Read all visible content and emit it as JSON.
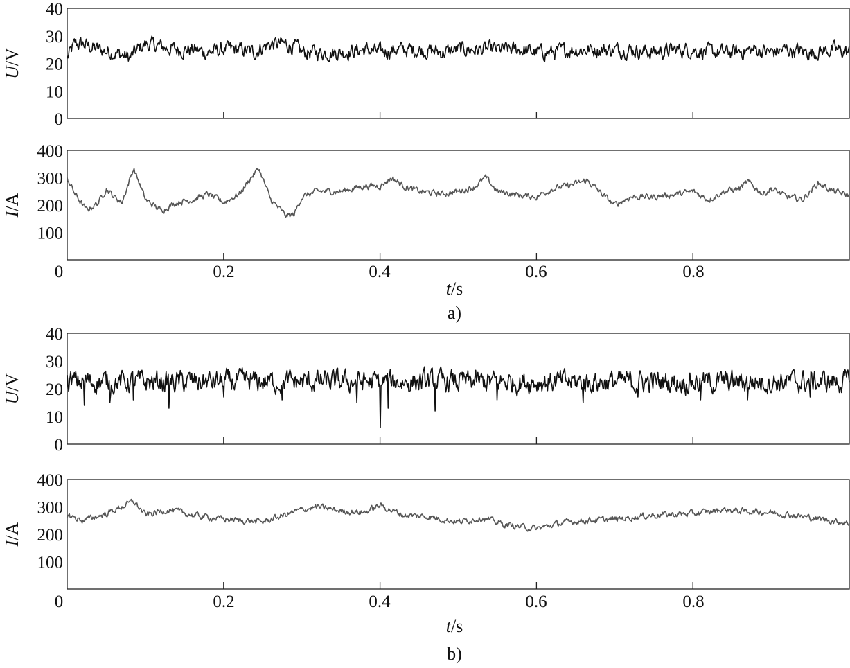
{
  "chart_data": [
    {
      "type": "line",
      "panel": "a) voltage",
      "ylabel_italic": "U",
      "ylabel_unit": "/V",
      "xlim": [
        0,
        1
      ],
      "ylim": [
        0,
        40
      ],
      "yticks": [
        "0",
        "10",
        "20",
        "30",
        "40"
      ],
      "xticks": [
        0.2,
        0.4,
        0.6,
        0.8
      ],
      "grid": false,
      "line_color": "#111111",
      "series": [
        {
          "t": [
            0,
            0.01,
            0.02,
            0.04,
            0.06,
            0.07,
            0.08,
            0.09,
            0.1,
            0.12,
            0.14,
            0.16,
            0.18,
            0.2,
            0.22,
            0.24,
            0.25,
            0.26,
            0.28,
            0.29,
            0.3,
            0.32,
            0.35,
            0.38,
            0.4,
            0.42,
            0.45,
            0.48,
            0.5,
            0.52,
            0.55,
            0.58,
            0.6,
            0.62,
            0.65,
            0.68,
            0.7,
            0.72,
            0.75,
            0.78,
            0.8,
            0.82,
            0.85,
            0.88,
            0.9,
            0.92,
            0.95,
            0.98,
            1.0
          ],
          "values": [
            22,
            27,
            27,
            25,
            24,
            23,
            22,
            25,
            27,
            26,
            25,
            25,
            24,
            25,
            25,
            24,
            26,
            27,
            27,
            26,
            24,
            24,
            24,
            25,
            24,
            25,
            25,
            24,
            25,
            25,
            25,
            25,
            24,
            24,
            25,
            25,
            25,
            25,
            24,
            25,
            25,
            24,
            24,
            25,
            24,
            25,
            24,
            25,
            24
          ],
          "noise": 2.2
        }
      ]
    },
    {
      "type": "line",
      "panel": "a) current",
      "ylabel_italic": "I",
      "ylabel_unit": "/A",
      "xlim": [
        0,
        1
      ],
      "ylim": [
        0,
        400
      ],
      "yticks": [
        "100",
        "200",
        "300",
        "400"
      ],
      "xticks": [
        0.2,
        0.4,
        0.6,
        0.8
      ],
      "grid": false,
      "line_color": "#555555",
      "series": [
        {
          "t": [
            0,
            0.01,
            0.025,
            0.04,
            0.05,
            0.06,
            0.07,
            0.085,
            0.1,
            0.12,
            0.14,
            0.16,
            0.18,
            0.2,
            0.22,
            0.235,
            0.245,
            0.26,
            0.28,
            0.29,
            0.3,
            0.32,
            0.35,
            0.38,
            0.4,
            0.415,
            0.43,
            0.45,
            0.48,
            0.5,
            0.52,
            0.535,
            0.55,
            0.58,
            0.6,
            0.62,
            0.64,
            0.665,
            0.68,
            0.7,
            0.72,
            0.75,
            0.78,
            0.8,
            0.82,
            0.84,
            0.86,
            0.87,
            0.89,
            0.9,
            0.92,
            0.94,
            0.96,
            0.98,
            1.0
          ],
          "values": [
            300,
            240,
            180,
            210,
            260,
            230,
            210,
            335,
            220,
            180,
            210,
            220,
            240,
            210,
            240,
            300,
            335,
            220,
            160,
            165,
            230,
            250,
            250,
            270,
            270,
            300,
            270,
            250,
            240,
            250,
            265,
            300,
            250,
            235,
            230,
            260,
            270,
            290,
            250,
            200,
            230,
            230,
            240,
            250,
            220,
            250,
            260,
            285,
            240,
            260,
            230,
            220,
            280,
            250,
            235
          ],
          "noise": 9
        }
      ]
    },
    {
      "type": "line",
      "panel": "b) voltage",
      "ylabel_italic": "U",
      "ylabel_unit": "/V",
      "xlim": [
        0,
        1
      ],
      "ylim": [
        0,
        40
      ],
      "yticks": [
        "0",
        "10",
        "20",
        "30",
        "40"
      ],
      "xticks": [
        0.2,
        0.4,
        0.6,
        0.8
      ],
      "grid": false,
      "line_color": "#111111",
      "series": [
        {
          "t": [
            0,
            0.1,
            0.2,
            0.3,
            0.4,
            0.5,
            0.6,
            0.7,
            0.8,
            0.9,
            1.0
          ],
          "values": [
            22.5,
            22.5,
            22.5,
            22.5,
            22.5,
            22.5,
            22.5,
            22.5,
            22.5,
            22.5,
            22.5
          ],
          "noise": 3.2,
          "spikes": [
            {
              "t": 0.022,
              "value": 14
            },
            {
              "t": 0.055,
              "value": 15
            },
            {
              "t": 0.085,
              "value": 16
            },
            {
              "t": 0.13,
              "value": 13
            },
            {
              "t": 0.2,
              "value": 17
            },
            {
              "t": 0.275,
              "value": 16
            },
            {
              "t": 0.37,
              "value": 15
            },
            {
              "t": 0.4,
              "value": 6
            },
            {
              "t": 0.41,
              "value": 13
            },
            {
              "t": 0.47,
              "value": 12
            },
            {
              "t": 0.55,
              "value": 16
            },
            {
              "t": 0.66,
              "value": 15
            },
            {
              "t": 0.73,
              "value": 17
            },
            {
              "t": 0.81,
              "value": 16
            },
            {
              "t": 0.87,
              "value": 16
            },
            {
              "t": 0.95,
              "value": 17
            }
          ]
        }
      ]
    },
    {
      "type": "line",
      "panel": "b) current",
      "ylabel_italic": "I",
      "ylabel_unit": "/A",
      "xlim": [
        0,
        1
      ],
      "ylim": [
        0,
        400
      ],
      "yticks": [
        "100",
        "200",
        "300",
        "400"
      ],
      "xticks": [
        0.2,
        0.4,
        0.6,
        0.8
      ],
      "grid": false,
      "line_color": "#555555",
      "series": [
        {
          "t": [
            0,
            0.02,
            0.05,
            0.085,
            0.1,
            0.13,
            0.16,
            0.2,
            0.25,
            0.3,
            0.32,
            0.35,
            0.38,
            0.4,
            0.43,
            0.46,
            0.5,
            0.53,
            0.56,
            0.6,
            0.63,
            0.66,
            0.7,
            0.75,
            0.8,
            0.84,
            0.86,
            0.9,
            0.94,
            1.0
          ],
          "values": [
            270,
            250,
            275,
            320,
            270,
            290,
            270,
            255,
            245,
            290,
            300,
            285,
            280,
            305,
            270,
            265,
            245,
            260,
            235,
            220,
            240,
            250,
            255,
            270,
            275,
            290,
            285,
            280,
            265,
            240
          ],
          "noise": 9
        }
      ]
    }
  ],
  "x_axis": {
    "label_italic": "t",
    "label_unit": "/s",
    "tick_labels": [
      "0",
      "0.2",
      "0.4",
      "0.6",
      "0.8"
    ]
  },
  "captions": {
    "a": "a)",
    "b": "b)"
  }
}
